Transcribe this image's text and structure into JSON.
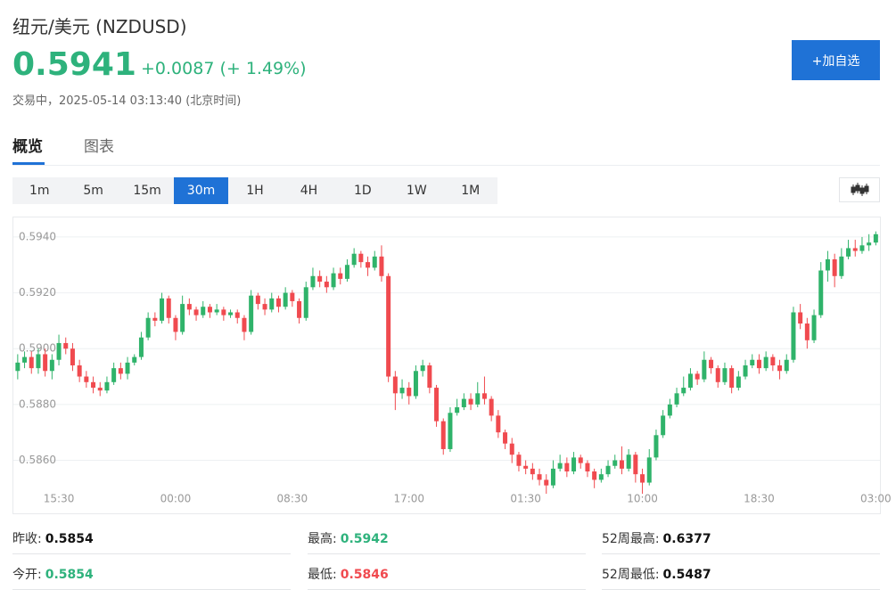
{
  "header": {
    "title": "纽元/美元 (NZDUSD)",
    "price": "0.5941",
    "change": "+0.0087 (+ 1.49%)",
    "status": "交易中，2025-05-14 03:13:40 (北京时间)",
    "button": "+加自选"
  },
  "tabs": [
    "概览",
    "图表"
  ],
  "intervals": [
    "1m",
    "5m",
    "15m",
    "30m",
    "1H",
    "4H",
    "1D",
    "1W",
    "1M"
  ],
  "stats": [
    [
      {
        "label": "昨收:",
        "value": "0.5854"
      },
      {
        "label": "最高:",
        "value": "0.5942"
      },
      {
        "label": "52周最高:",
        "value": "0.6377"
      }
    ],
    [
      {
        "label": "今开:",
        "value": "0.5854"
      },
      {
        "label": "最低:",
        "value": "0.5846"
      },
      {
        "label": "52周最低:",
        "value": "0.5487"
      }
    ]
  ],
  "chart_data": {
    "type": "candlestick",
    "up_color": "#2fb36a",
    "down_color": "#f04a4f",
    "grid": true,
    "ylim": [
      0.5841,
      0.5947
    ],
    "yticks": [
      {
        "value": 0.586,
        "label": "0.5860"
      },
      {
        "value": 0.588,
        "label": "0.5880"
      },
      {
        "value": 0.59,
        "label": "0.5900"
      },
      {
        "value": 0.592,
        "label": "0.5920"
      },
      {
        "value": 0.594,
        "label": "0.5940"
      }
    ],
    "categories": [
      null,
      null,
      null,
      null,
      null,
      null,
      "15:30",
      null,
      null,
      null,
      null,
      null,
      null,
      null,
      null,
      null,
      null,
      null,
      null,
      null,
      null,
      null,
      null,
      "00:00",
      null,
      null,
      null,
      null,
      null,
      null,
      null,
      null,
      null,
      null,
      null,
      null,
      null,
      null,
      null,
      null,
      "08:30",
      null,
      null,
      null,
      null,
      null,
      null,
      null,
      null,
      null,
      null,
      null,
      null,
      null,
      null,
      null,
      null,
      "17:00",
      null,
      null,
      null,
      null,
      null,
      null,
      null,
      null,
      null,
      null,
      null,
      null,
      null,
      null,
      null,
      null,
      "01:30",
      null,
      null,
      null,
      null,
      null,
      null,
      null,
      null,
      null,
      null,
      null,
      null,
      null,
      null,
      null,
      null,
      "10:00",
      null,
      null,
      null,
      null,
      null,
      null,
      null,
      null,
      null,
      null,
      null,
      null,
      null,
      null,
      null,
      null,
      "18:30",
      null,
      null,
      null,
      null,
      null,
      null,
      null,
      null,
      null,
      null,
      null,
      null,
      null,
      null,
      null,
      null,
      "03:00"
    ],
    "candles": [
      [
        0.5892,
        0.5898,
        0.5889,
        0.5895
      ],
      [
        0.5895,
        0.5899,
        0.5893,
        0.5897
      ],
      [
        0.5897,
        0.5899,
        0.5891,
        0.5893
      ],
      [
        0.5893,
        0.59,
        0.5891,
        0.5898
      ],
      [
        0.5898,
        0.59,
        0.589,
        0.5892
      ],
      [
        0.5892,
        0.5898,
        0.5889,
        0.5896
      ],
      [
        0.5896,
        0.5905,
        0.5894,
        0.5902
      ],
      [
        0.5902,
        0.5904,
        0.5898,
        0.59
      ],
      [
        0.59,
        0.5902,
        0.5892,
        0.5894
      ],
      [
        0.5894,
        0.5896,
        0.5888,
        0.589
      ],
      [
        0.589,
        0.5892,
        0.5886,
        0.5888
      ],
      [
        0.5888,
        0.589,
        0.5884,
        0.5886
      ],
      [
        0.5886,
        0.5888,
        0.5883,
        0.5885
      ],
      [
        0.5885,
        0.589,
        0.5884,
        0.5888
      ],
      [
        0.5888,
        0.5895,
        0.5887,
        0.5893
      ],
      [
        0.5893,
        0.5895,
        0.5889,
        0.5891
      ],
      [
        0.5891,
        0.5897,
        0.5889,
        0.5895
      ],
      [
        0.5895,
        0.5898,
        0.5894,
        0.5897
      ],
      [
        0.5897,
        0.5906,
        0.5896,
        0.5904
      ],
      [
        0.5904,
        0.5913,
        0.5903,
        0.5911
      ],
      [
        0.5911,
        0.5913,
        0.5908,
        0.591
      ],
      [
        0.591,
        0.592,
        0.5909,
        0.5918
      ],
      [
        0.5918,
        0.5919,
        0.5909,
        0.5911
      ],
      [
        0.5911,
        0.5912,
        0.5903,
        0.5906
      ],
      [
        0.5906,
        0.5919,
        0.5905,
        0.5916
      ],
      [
        0.5916,
        0.5918,
        0.5912,
        0.5914
      ],
      [
        0.5914,
        0.5915,
        0.591,
        0.5912
      ],
      [
        0.5912,
        0.5917,
        0.5911,
        0.5915
      ],
      [
        0.5915,
        0.5916,
        0.5911,
        0.5913
      ],
      [
        0.5913,
        0.5916,
        0.5912,
        0.5914
      ],
      [
        0.5914,
        0.5915,
        0.591,
        0.5912
      ],
      [
        0.5912,
        0.5914,
        0.5911,
        0.5913
      ],
      [
        0.5913,
        0.5914,
        0.5909,
        0.5911
      ],
      [
        0.5911,
        0.5912,
        0.5903,
        0.5906
      ],
      [
        0.5906,
        0.5921,
        0.5905,
        0.5919
      ],
      [
        0.5919,
        0.592,
        0.5914,
        0.5916
      ],
      [
        0.5916,
        0.5918,
        0.5912,
        0.5914
      ],
      [
        0.5914,
        0.592,
        0.5913,
        0.5918
      ],
      [
        0.5918,
        0.5919,
        0.5913,
        0.5915
      ],
      [
        0.5915,
        0.5922,
        0.5914,
        0.592
      ],
      [
        0.592,
        0.5921,
        0.5915,
        0.5917
      ],
      [
        0.5917,
        0.5918,
        0.5909,
        0.5911
      ],
      [
        0.5911,
        0.5924,
        0.591,
        0.5922
      ],
      [
        0.5922,
        0.5929,
        0.5921,
        0.5926
      ],
      [
        0.5926,
        0.5928,
        0.5922,
        0.5924
      ],
      [
        0.5924,
        0.5926,
        0.592,
        0.5922
      ],
      [
        0.5922,
        0.5929,
        0.5921,
        0.5927
      ],
      [
        0.5927,
        0.5929,
        0.5923,
        0.5925
      ],
      [
        0.5925,
        0.5932,
        0.5924,
        0.593
      ],
      [
        0.593,
        0.5936,
        0.5929,
        0.5934
      ],
      [
        0.5934,
        0.5935,
        0.5929,
        0.5931
      ],
      [
        0.5931,
        0.5933,
        0.5926,
        0.5929
      ],
      [
        0.5929,
        0.5935,
        0.5928,
        0.5933
      ],
      [
        0.5933,
        0.5937,
        0.5924,
        0.5926
      ],
      [
        0.5926,
        0.5927,
        0.5888,
        0.589
      ],
      [
        0.589,
        0.5892,
        0.5878,
        0.5884
      ],
      [
        0.5884,
        0.5889,
        0.5882,
        0.5886
      ],
      [
        0.5886,
        0.5888,
        0.588,
        0.5883
      ],
      [
        0.5883,
        0.5894,
        0.5882,
        0.5892
      ],
      [
        0.5892,
        0.5896,
        0.589,
        0.5894
      ],
      [
        0.5894,
        0.5895,
        0.5884,
        0.5886
      ],
      [
        0.5886,
        0.5887,
        0.5872,
        0.5874
      ],
      [
        0.5874,
        0.5875,
        0.5862,
        0.5864
      ],
      [
        0.5864,
        0.5879,
        0.5863,
        0.5877
      ],
      [
        0.5877,
        0.5882,
        0.5876,
        0.5879
      ],
      [
        0.5879,
        0.5884,
        0.5878,
        0.5882
      ],
      [
        0.5882,
        0.5884,
        0.5878,
        0.588
      ],
      [
        0.588,
        0.5888,
        0.5879,
        0.5884
      ],
      [
        0.5884,
        0.589,
        0.588,
        0.5882
      ],
      [
        0.5882,
        0.5883,
        0.5874,
        0.5876
      ],
      [
        0.5876,
        0.5878,
        0.5868,
        0.587
      ],
      [
        0.587,
        0.5871,
        0.5864,
        0.5866
      ],
      [
        0.5866,
        0.5868,
        0.5859,
        0.5862
      ],
      [
        0.5862,
        0.5863,
        0.5856,
        0.5858
      ],
      [
        0.5858,
        0.586,
        0.5855,
        0.5857
      ],
      [
        0.5857,
        0.5859,
        0.5853,
        0.5855
      ],
      [
        0.5855,
        0.5857,
        0.5851,
        0.5853
      ],
      [
        0.5853,
        0.5855,
        0.5848,
        0.5851
      ],
      [
        0.5851,
        0.586,
        0.585,
        0.5857
      ],
      [
        0.5857,
        0.5862,
        0.5856,
        0.5859
      ],
      [
        0.5859,
        0.5861,
        0.5854,
        0.5856
      ],
      [
        0.5856,
        0.5863,
        0.5855,
        0.5861
      ],
      [
        0.5861,
        0.5862,
        0.5857,
        0.5859
      ],
      [
        0.5859,
        0.586,
        0.5854,
        0.5856
      ],
      [
        0.5856,
        0.5857,
        0.585,
        0.5853
      ],
      [
        0.5853,
        0.5857,
        0.5852,
        0.5855
      ],
      [
        0.5855,
        0.586,
        0.5854,
        0.5858
      ],
      [
        0.5858,
        0.5862,
        0.5857,
        0.586
      ],
      [
        0.586,
        0.5865,
        0.5855,
        0.5857
      ],
      [
        0.5857,
        0.5864,
        0.5856,
        0.5862
      ],
      [
        0.5862,
        0.5863,
        0.5852,
        0.5855
      ],
      [
        0.5855,
        0.5857,
        0.5848,
        0.5852
      ],
      [
        0.5852,
        0.5864,
        0.5851,
        0.5861
      ],
      [
        0.5861,
        0.5871,
        0.586,
        0.5869
      ],
      [
        0.5869,
        0.5878,
        0.5868,
        0.5876
      ],
      [
        0.5876,
        0.5882,
        0.5875,
        0.588
      ],
      [
        0.588,
        0.5886,
        0.5879,
        0.5884
      ],
      [
        0.5884,
        0.589,
        0.5883,
        0.5886
      ],
      [
        0.5886,
        0.5893,
        0.5885,
        0.5891
      ],
      [
        0.5891,
        0.5892,
        0.5887,
        0.5889
      ],
      [
        0.5889,
        0.5899,
        0.5888,
        0.5896
      ],
      [
        0.5896,
        0.5897,
        0.5891,
        0.5893
      ],
      [
        0.5893,
        0.5894,
        0.5886,
        0.5888
      ],
      [
        0.5888,
        0.5895,
        0.5887,
        0.5893
      ],
      [
        0.5893,
        0.5894,
        0.5884,
        0.5886
      ],
      [
        0.5886,
        0.5892,
        0.5885,
        0.589
      ],
      [
        0.589,
        0.5896,
        0.5889,
        0.5894
      ],
      [
        0.5894,
        0.5898,
        0.5893,
        0.5896
      ],
      [
        0.5896,
        0.5898,
        0.5891,
        0.5893
      ],
      [
        0.5893,
        0.5899,
        0.5892,
        0.5897
      ],
      [
        0.5897,
        0.5898,
        0.5892,
        0.5894
      ],
      [
        0.5894,
        0.5896,
        0.5889,
        0.5892
      ],
      [
        0.5892,
        0.5898,
        0.5891,
        0.5896
      ],
      [
        0.5896,
        0.5915,
        0.5895,
        0.5913
      ],
      [
        0.5913,
        0.5916,
        0.5907,
        0.5909
      ],
      [
        0.5909,
        0.5911,
        0.59,
        0.5903
      ],
      [
        0.5903,
        0.5914,
        0.5902,
        0.5912
      ],
      [
        0.5912,
        0.5931,
        0.5911,
        0.5928
      ],
      [
        0.5928,
        0.5935,
        0.5924,
        0.5932
      ],
      [
        0.5932,
        0.5934,
        0.5922,
        0.5926
      ],
      [
        0.5926,
        0.5936,
        0.5925,
        0.5933
      ],
      [
        0.5933,
        0.5939,
        0.5932,
        0.5936
      ],
      [
        0.5936,
        0.5939,
        0.5933,
        0.5935
      ],
      [
        0.5935,
        0.594,
        0.5934,
        0.5937
      ],
      [
        0.5937,
        0.5941,
        0.5935,
        0.5938
      ],
      [
        0.5938,
        0.5942,
        0.5937,
        0.5941
      ]
    ]
  }
}
